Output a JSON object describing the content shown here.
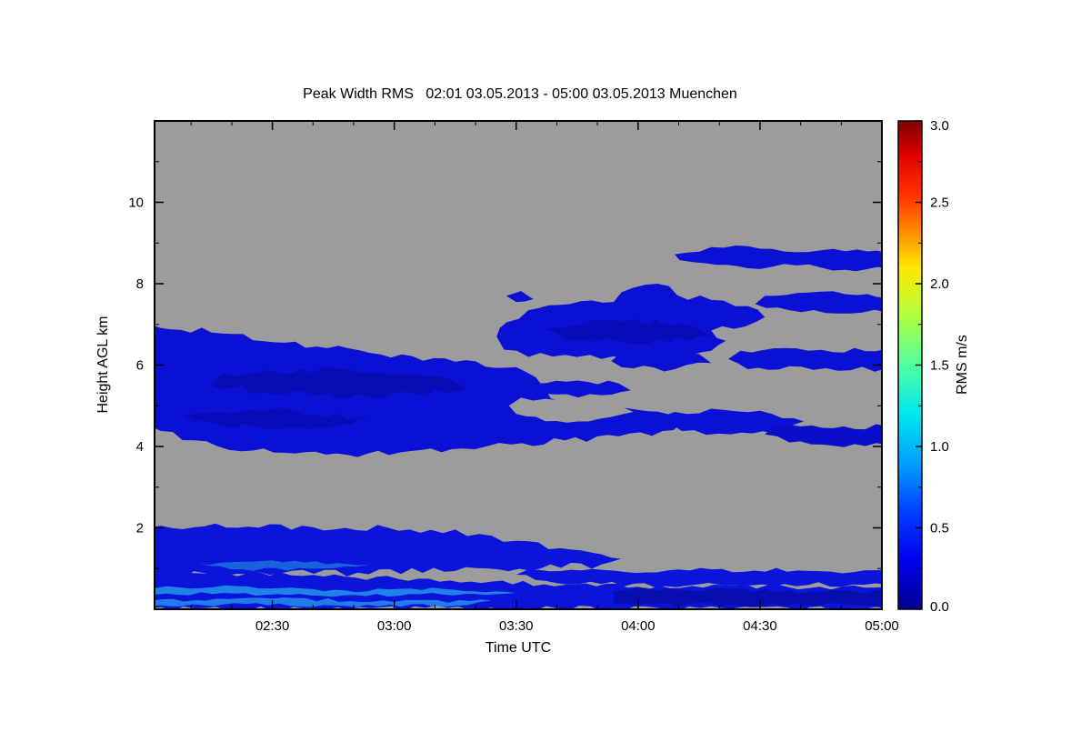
{
  "chart_data": {
    "type": "heatmap",
    "title": "Peak Width RMS   02:01 03.05.2013 - 05:00 03.05.2013 Muenchen",
    "xlabel": "Time UTC",
    "ylabel": "Height AGL km",
    "x_range_hours": [
      2.0167,
      5.0
    ],
    "y_range_km": [
      0,
      12
    ],
    "x_ticks": [
      {
        "value": 2.5,
        "label": "02:30"
      },
      {
        "value": 3.0,
        "label": "03:00"
      },
      {
        "value": 3.5,
        "label": "03:30"
      },
      {
        "value": 4.0,
        "label": "04:00"
      },
      {
        "value": 4.5,
        "label": "04:30"
      },
      {
        "value": 5.0,
        "label": "05:00"
      }
    ],
    "y_ticks": [
      {
        "value": 2,
        "label": "2"
      },
      {
        "value": 4,
        "label": "4"
      },
      {
        "value": 6,
        "label": "6"
      },
      {
        "value": 8,
        "label": "8"
      },
      {
        "value": 10,
        "label": "10"
      }
    ],
    "plot_background": "#9c9c9c",
    "value_units": "m/s",
    "colorbar": {
      "label": "RMS m/s",
      "min": 0.0,
      "max": 3.0,
      "ticks": [
        {
          "value": 0.0,
          "label": "0.0"
        },
        {
          "value": 0.5,
          "label": "0.5"
        },
        {
          "value": 1.0,
          "label": "1.0"
        },
        {
          "value": 1.5,
          "label": "1.5"
        },
        {
          "value": 2.0,
          "label": "2.0"
        },
        {
          "value": 2.5,
          "label": "2.5"
        },
        {
          "value": 3.0,
          "label": "3.0"
        }
      ],
      "stops": [
        {
          "at": 0.0,
          "color": "#00008f"
        },
        {
          "at": 0.1,
          "color": "#0000f0"
        },
        {
          "at": 0.2,
          "color": "#0040ff"
        },
        {
          "at": 0.3,
          "color": "#00a0ff"
        },
        {
          "at": 0.4,
          "color": "#00e8f0"
        },
        {
          "at": 0.5,
          "color": "#50ffa0"
        },
        {
          "at": 0.6,
          "color": "#b0ff40"
        },
        {
          "at": 0.7,
          "color": "#ffe800"
        },
        {
          "at": 0.77,
          "color": "#ff9000"
        },
        {
          "at": 0.85,
          "color": "#ff3000"
        },
        {
          "at": 0.93,
          "color": "#e00000"
        },
        {
          "at": 1.0,
          "color": "#7f0000"
        }
      ]
    },
    "regions": [
      {
        "name": "mid-left-mass",
        "color": "#0a10d4",
        "opacity": 1,
        "rough": 4,
        "approx_value_ms": 0.3,
        "points": [
          [
            2.0,
            7.0
          ],
          [
            2.25,
            6.8
          ],
          [
            2.55,
            6.55
          ],
          [
            2.9,
            6.3
          ],
          [
            3.25,
            6.08
          ],
          [
            3.5,
            5.95
          ],
          [
            3.58,
            5.7
          ],
          [
            3.62,
            5.4
          ],
          [
            3.68,
            5.1
          ],
          [
            3.82,
            4.95
          ],
          [
            4.0,
            4.9
          ],
          [
            4.12,
            4.8
          ],
          [
            4.18,
            4.58
          ],
          [
            4.1,
            4.38
          ],
          [
            3.92,
            4.25
          ],
          [
            3.7,
            4.15
          ],
          [
            3.48,
            4.05
          ],
          [
            3.28,
            3.95
          ],
          [
            3.02,
            3.85
          ],
          [
            2.72,
            3.8
          ],
          [
            2.42,
            3.9
          ],
          [
            2.18,
            4.15
          ],
          [
            2.0,
            4.5
          ]
        ]
      },
      {
        "name": "mid-gray-notch",
        "color": "#9c9c9c",
        "opacity": 1,
        "rough": 3,
        "approx_value_ms": null,
        "points": [
          [
            3.52,
            5.2
          ],
          [
            3.72,
            5.12
          ],
          [
            3.92,
            5.06
          ],
          [
            3.98,
            4.85
          ],
          [
            3.84,
            4.68
          ],
          [
            3.62,
            4.62
          ],
          [
            3.5,
            4.8
          ],
          [
            3.47,
            5.0
          ]
        ]
      },
      {
        "name": "mid-band-right",
        "color": "#0a10d4",
        "opacity": 1,
        "rough": 3,
        "approx_value_ms": 0.3,
        "points": [
          [
            4.15,
            4.85
          ],
          [
            4.35,
            4.9
          ],
          [
            4.55,
            4.8
          ],
          [
            4.68,
            4.62
          ],
          [
            4.6,
            4.4
          ],
          [
            4.38,
            4.3
          ],
          [
            4.18,
            4.38
          ],
          [
            4.08,
            4.6
          ]
        ]
      },
      {
        "name": "mid-strip-right",
        "color": "#0a0ec8",
        "opacity": 1,
        "rough": 3,
        "approx_value_ms": 0.25,
        "points": [
          [
            4.58,
            4.5
          ],
          [
            4.8,
            4.45
          ],
          [
            5.02,
            4.5
          ],
          [
            5.02,
            4.05
          ],
          [
            4.8,
            4.02
          ],
          [
            4.62,
            4.1
          ],
          [
            4.52,
            4.3
          ]
        ]
      },
      {
        "name": "upper-mid-mass",
        "color": "#0a10d4",
        "opacity": 1,
        "rough": 4,
        "approx_value_ms": 0.3,
        "points": [
          [
            3.42,
            6.7
          ],
          [
            3.46,
            7.05
          ],
          [
            3.55,
            7.35
          ],
          [
            3.72,
            7.5
          ],
          [
            3.9,
            7.55
          ],
          [
            3.98,
            7.9
          ],
          [
            4.08,
            8.0
          ],
          [
            4.16,
            7.72
          ],
          [
            4.3,
            7.6
          ],
          [
            4.45,
            7.45
          ],
          [
            4.52,
            7.18
          ],
          [
            4.44,
            6.95
          ],
          [
            4.3,
            6.85
          ],
          [
            4.36,
            6.6
          ],
          [
            4.3,
            6.35
          ],
          [
            4.05,
            6.2
          ],
          [
            3.85,
            6.15
          ],
          [
            3.7,
            6.25
          ],
          [
            3.55,
            6.2
          ],
          [
            3.45,
            6.38
          ]
        ]
      },
      {
        "name": "upper-speck",
        "color": "#0a10d4",
        "opacity": 1,
        "rough": 2,
        "approx_value_ms": 0.3,
        "points": [
          [
            3.46,
            7.7
          ],
          [
            3.52,
            7.82
          ],
          [
            3.57,
            7.62
          ],
          [
            3.5,
            7.55
          ]
        ]
      },
      {
        "name": "upper-right-band",
        "color": "#0a10d4",
        "opacity": 1,
        "rough": 3,
        "approx_value_ms": 0.3,
        "points": [
          [
            4.52,
            7.7
          ],
          [
            4.7,
            7.78
          ],
          [
            4.9,
            7.72
          ],
          [
            5.02,
            7.66
          ],
          [
            5.02,
            7.3
          ],
          [
            4.82,
            7.27
          ],
          [
            4.62,
            7.35
          ],
          [
            4.48,
            7.5
          ]
        ]
      },
      {
        "name": "band6-left",
        "color": "#0a10d4",
        "opacity": 1,
        "rough": 3,
        "approx_value_ms": 0.3,
        "points": [
          [
            3.93,
            6.3
          ],
          [
            4.1,
            6.35
          ],
          [
            4.25,
            6.27
          ],
          [
            4.3,
            6.05
          ],
          [
            4.15,
            5.9
          ],
          [
            3.98,
            5.92
          ],
          [
            3.89,
            6.1
          ]
        ]
      },
      {
        "name": "band6-right",
        "color": "#0a10d4",
        "opacity": 1,
        "rough": 3,
        "approx_value_ms": 0.3,
        "points": [
          [
            4.42,
            6.35
          ],
          [
            4.6,
            6.42
          ],
          [
            4.8,
            6.32
          ],
          [
            5.02,
            6.4
          ],
          [
            5.02,
            5.92
          ],
          [
            4.82,
            5.86
          ],
          [
            4.62,
            5.97
          ],
          [
            4.45,
            5.9
          ],
          [
            4.37,
            6.15
          ]
        ]
      },
      {
        "name": "mid-small-blob",
        "color": "#0a10d4",
        "opacity": 1,
        "rough": 3,
        "approx_value_ms": 0.3,
        "points": [
          [
            3.58,
            5.55
          ],
          [
            3.75,
            5.62
          ],
          [
            3.92,
            5.55
          ],
          [
            3.97,
            5.38
          ],
          [
            3.85,
            5.26
          ],
          [
            3.66,
            5.28
          ],
          [
            3.55,
            5.4
          ]
        ]
      },
      {
        "name": "top-strip",
        "color": "#0a10d4",
        "opacity": 1,
        "rough": 3,
        "approx_value_ms": 0.3,
        "points": [
          [
            4.15,
            8.72
          ],
          [
            4.3,
            8.9
          ],
          [
            4.5,
            8.86
          ],
          [
            4.7,
            8.78
          ],
          [
            4.9,
            8.84
          ],
          [
            5.02,
            8.75
          ],
          [
            5.02,
            8.4
          ],
          [
            4.85,
            8.34
          ],
          [
            4.65,
            8.45
          ],
          [
            4.45,
            8.38
          ],
          [
            4.28,
            8.5
          ],
          [
            4.17,
            8.58
          ]
        ]
      },
      {
        "name": "low-wedge",
        "color": "#0a14da",
        "opacity": 1,
        "rough": 4,
        "approx_value_ms": 0.35,
        "points": [
          [
            2.0,
            2.02
          ],
          [
            2.4,
            2.03
          ],
          [
            2.8,
            2.0
          ],
          [
            3.15,
            1.95
          ],
          [
            3.35,
            1.85
          ],
          [
            3.5,
            1.68
          ],
          [
            3.68,
            1.5
          ],
          [
            3.85,
            1.35
          ],
          [
            3.93,
            1.24
          ],
          [
            3.85,
            1.1
          ],
          [
            3.6,
            1.0
          ],
          [
            3.25,
            0.94
          ],
          [
            2.85,
            0.9
          ],
          [
            2.4,
            0.86
          ],
          [
            2.0,
            0.84
          ]
        ]
      },
      {
        "name": "low-streak",
        "color": "#0a14da",
        "opacity": 1,
        "rough": 3,
        "approx_value_ms": 0.35,
        "points": [
          [
            3.55,
            0.98
          ],
          [
            3.9,
            0.95
          ],
          [
            4.3,
            0.98
          ],
          [
            4.7,
            0.94
          ],
          [
            5.02,
            0.96
          ],
          [
            5.02,
            0.6
          ],
          [
            4.6,
            0.62
          ],
          [
            4.2,
            0.58
          ],
          [
            3.85,
            0.62
          ],
          [
            3.62,
            0.7
          ],
          [
            3.5,
            0.85
          ]
        ]
      },
      {
        "name": "low-bottom",
        "color": "#0a14da",
        "opacity": 1,
        "rough": 3,
        "approx_value_ms": 0.35,
        "points": [
          [
            2.0,
            0.85
          ],
          [
            2.4,
            0.88
          ],
          [
            2.8,
            0.8
          ],
          [
            3.1,
            0.75
          ],
          [
            3.4,
            0.68
          ],
          [
            3.7,
            0.6
          ],
          [
            4.0,
            0.55
          ],
          [
            4.4,
            0.58
          ],
          [
            4.7,
            0.52
          ],
          [
            5.02,
            0.55
          ],
          [
            5.02,
            0.02
          ],
          [
            2.0,
            0.02
          ]
        ]
      },
      {
        "name": "cyan-streak-1",
        "color": "#28b0ee",
        "opacity": 0.7,
        "rough": 2,
        "approx_value_ms": 0.8,
        "points": [
          [
            2.02,
            0.52
          ],
          [
            2.4,
            0.56
          ],
          [
            2.8,
            0.46
          ],
          [
            3.2,
            0.5
          ],
          [
            3.5,
            0.4
          ],
          [
            3.2,
            0.36
          ],
          [
            2.7,
            0.33
          ],
          [
            2.3,
            0.4
          ],
          [
            2.02,
            0.36
          ]
        ]
      },
      {
        "name": "cyan-streak-2",
        "color": "#30c0f8",
        "opacity": 0.6,
        "rough": 2,
        "approx_value_ms": 0.9,
        "points": [
          [
            2.0,
            0.2
          ],
          [
            2.5,
            0.26
          ],
          [
            3.0,
            0.18
          ],
          [
            3.4,
            0.22
          ],
          [
            3.3,
            0.1
          ],
          [
            2.8,
            0.08
          ],
          [
            2.3,
            0.12
          ],
          [
            2.0,
            0.08
          ]
        ]
      },
      {
        "name": "cyan-patch",
        "color": "#2098e0",
        "opacity": 0.6,
        "rough": 2,
        "approx_value_ms": 0.7,
        "points": [
          [
            2.2,
            1.12
          ],
          [
            2.5,
            1.2
          ],
          [
            2.9,
            1.1
          ],
          [
            2.7,
            1.0
          ],
          [
            2.33,
            0.98
          ]
        ]
      },
      {
        "name": "mottle-1",
        "color": "#06088f",
        "opacity": 0.45,
        "rough": 4,
        "approx_value_ms": 0.15,
        "points": [
          [
            2.3,
            5.8
          ],
          [
            2.8,
            5.9
          ],
          [
            3.2,
            5.7
          ],
          [
            3.3,
            5.4
          ],
          [
            2.9,
            5.2
          ],
          [
            2.5,
            5.3
          ],
          [
            2.25,
            5.5
          ]
        ]
      },
      {
        "name": "mottle-2",
        "color": "#06088f",
        "opacity": 0.4,
        "rough": 4,
        "approx_value_ms": 0.15,
        "points": [
          [
            2.1,
            4.8
          ],
          [
            2.5,
            4.92
          ],
          [
            2.9,
            4.7
          ],
          [
            2.7,
            4.45
          ],
          [
            2.3,
            4.5
          ]
        ]
      },
      {
        "name": "mottle-3",
        "color": "#06088f",
        "opacity": 0.4,
        "rough": 4,
        "approx_value_ms": 0.15,
        "points": [
          [
            3.62,
            6.9
          ],
          [
            3.9,
            7.1
          ],
          [
            4.2,
            7.0
          ],
          [
            4.3,
            6.7
          ],
          [
            3.95,
            6.55
          ],
          [
            3.7,
            6.6
          ]
        ]
      },
      {
        "name": "dark-strip-bottom-right",
        "color": "#05078c",
        "opacity": 0.55,
        "rough": 3,
        "approx_value_ms": 0.1,
        "points": [
          [
            3.9,
            0.46
          ],
          [
            4.3,
            0.5
          ],
          [
            4.7,
            0.42
          ],
          [
            5.02,
            0.46
          ],
          [
            5.02,
            0.1
          ],
          [
            4.6,
            0.08
          ],
          [
            4.2,
            0.12
          ],
          [
            3.9,
            0.1
          ]
        ]
      }
    ]
  }
}
